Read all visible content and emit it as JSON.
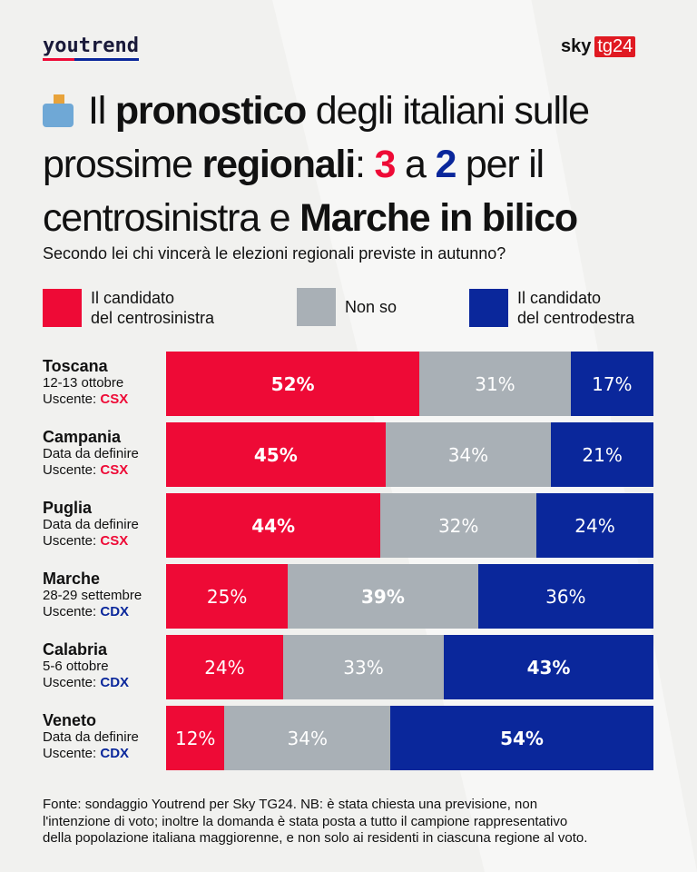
{
  "header": {
    "left_logo": "youtrend",
    "right_logo_a": "sky",
    "right_logo_b": "tg24"
  },
  "title": {
    "t1": "Il ",
    "t2": "pronostico",
    "t3": " degli italiani sulle",
    "t4": "prossime ",
    "t5": "regionali",
    "t6": ": ",
    "t7": "3",
    "t8": " a ",
    "t9": "2",
    "t10": " per il",
    "t11": "centrosinistra e ",
    "t12": "Marche in bilico"
  },
  "subtitle": "Secondo lei chi vincerà le elezioni regionali previste in autunno?",
  "colors": {
    "csx": "#ee0a36",
    "nonso": "#a9b0b6",
    "cdx": "#0a279b"
  },
  "chart_data": {
    "type": "bar",
    "stacked": true,
    "orientation": "horizontal",
    "unit": "%",
    "legend": [
      "Il candidato del centrosinistra",
      "Non so",
      "Il candidato del centrodestra"
    ],
    "legend_placement": "top",
    "rows": [
      {
        "region": "Toscana",
        "date": "12-13 ottobre",
        "uscente_label": "Uscente: ",
        "uscente": "CSX",
        "values": [
          52,
          31,
          17
        ]
      },
      {
        "region": "Campania",
        "date": "Data da definire",
        "uscente_label": "Uscente: ",
        "uscente": "CSX",
        "values": [
          45,
          34,
          21
        ]
      },
      {
        "region": "Puglia",
        "date": "Data da definire",
        "uscente_label": "Uscente: ",
        "uscente": "CSX",
        "values": [
          44,
          32,
          24
        ]
      },
      {
        "region": "Marche",
        "date": "28-29 settembre",
        "uscente_label": "Uscente: ",
        "uscente": "CDX",
        "values": [
          25,
          39,
          36
        ]
      },
      {
        "region": "Calabria",
        "date": "5-6 ottobre",
        "uscente_label": "Uscente: ",
        "uscente": "CDX",
        "values": [
          24,
          33,
          43
        ]
      },
      {
        "region": "Veneto",
        "date": "Data da definire",
        "uscente_label": "Uscente: ",
        "uscente": "CDX",
        "values": [
          12,
          34,
          54
        ]
      }
    ]
  },
  "legend": {
    "csx_1": "Il candidato",
    "csx_2": "del centrosinistra",
    "nonso": "Non so",
    "cdx_1": "Il candidato",
    "cdx_2": "del centrodestra"
  },
  "footer": [
    "Fonte: sondaggio Youtrend per Sky TG24. NB: è stata chiesta una previsione, non",
    "l'intenzione di voto; inoltre la domanda è stata posta a tutto il campione rappresentativo",
    "della popolazione italiana maggiorenne, e non solo ai residenti in ciascuna regione al voto."
  ]
}
